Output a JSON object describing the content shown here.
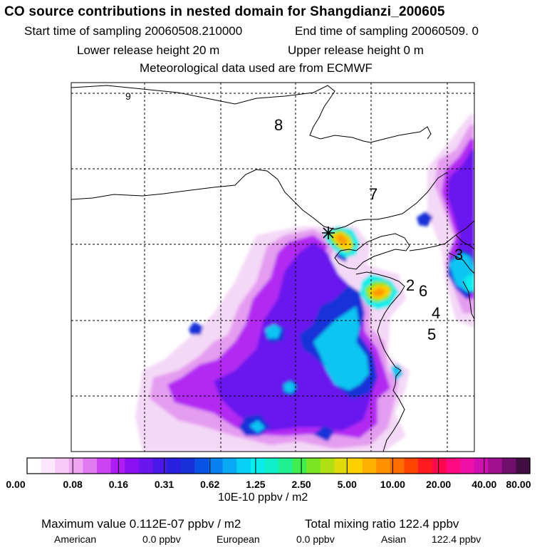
{
  "header": {
    "title": "CO  source contributions in nested domain for Shangdianzi_200605",
    "start_label": "Start time of sampling 20060508.210000",
    "end_label": "End time of sampling 20060509.     0",
    "lower_release": "Lower release height   20 m",
    "upper_release": "Upper release height    0 m",
    "met_data": "Meteorological data used are from ECMWF"
  },
  "map": {
    "region_labels": [
      "9",
      "8",
      "7",
      "2",
      "6",
      "4",
      "5",
      "3"
    ],
    "station_marker": "asterisk",
    "grid": true,
    "colors": {
      "coast": "#000000",
      "grid": "#000000"
    }
  },
  "legend": {
    "ticks": [
      "0.00",
      "0.08",
      "0.16",
      "0.31",
      "0.62",
      "1.25",
      "2.50",
      "5.00",
      "10.00",
      "20.00",
      "40.00",
      "80.00"
    ],
    "unit": "10E-10 ppbv / m2",
    "colors": [
      "#ffffff",
      "#fce6fc",
      "#f7c9f7",
      "#f0a6f2",
      "#e27bef",
      "#cc44f2",
      "#b01cf5",
      "#8c10f2",
      "#6a14ee",
      "#4a18e8",
      "#2a20e0",
      "#1830d8",
      "#0a52e6",
      "#0780f0",
      "#08a8f4",
      "#06d0f4",
      "#07ecec",
      "#10f0c8",
      "#20f090",
      "#40ee50",
      "#7ae626",
      "#b0e014",
      "#e0dc0c",
      "#ffd000",
      "#ffb000",
      "#ff9000",
      "#ff6c00",
      "#ff4400",
      "#ff1a20",
      "#ff0850",
      "#ff0a80",
      "#f010a8",
      "#d010b0",
      "#a01090",
      "#70106c",
      "#401040"
    ]
  },
  "summary": {
    "max_value": "Maximum value  0.112E-07 ppbv / m2",
    "total_mixing": "Total mixing ratio      122.4 ppbv",
    "american_label": "American",
    "american_value": "0.0 ppbv",
    "european_label": "European",
    "european_value": "0.0 ppbv",
    "asian_label": "Asian",
    "asian_value": "122.4 ppbv"
  }
}
